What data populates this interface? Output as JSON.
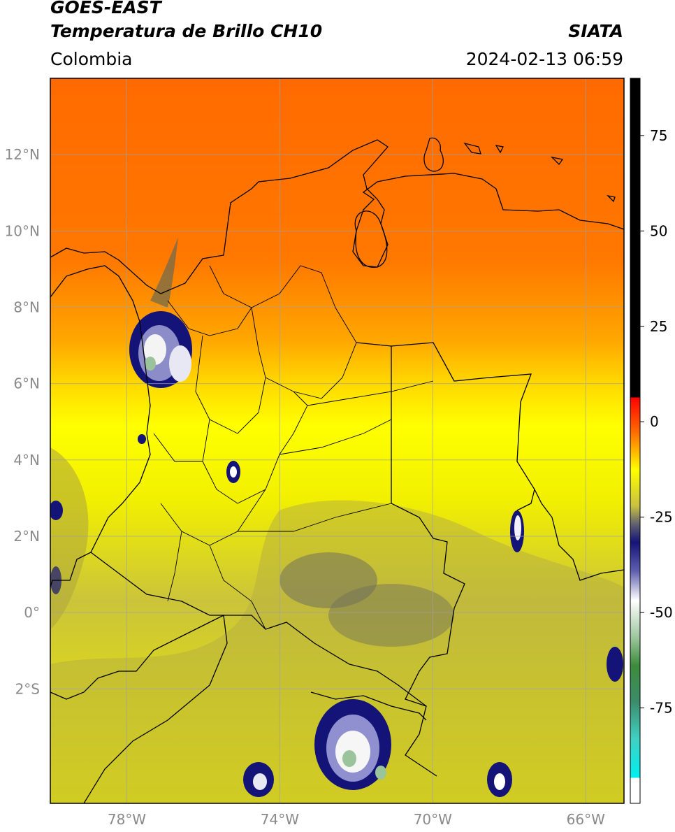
{
  "header": {
    "satellite": "GOES-EAST",
    "product": "Temperatura de Brillo CH10",
    "brand": "SIATA",
    "region": "Colombia",
    "timestamp": "2024-02-13 06:59"
  },
  "map": {
    "lon_range": [
      -80,
      -65
    ],
    "lat_range": [
      -5,
      14
    ],
    "x_ticks": [
      {
        "value": -78,
        "label": "78°W"
      },
      {
        "value": -74,
        "label": "74°W"
      },
      {
        "value": -70,
        "label": "70°W"
      },
      {
        "value": -66,
        "label": "66°W"
      }
    ],
    "y_ticks": [
      {
        "value": 12,
        "label": "12°N"
      },
      {
        "value": 10,
        "label": "10°N"
      },
      {
        "value": 8,
        "label": "8°N"
      },
      {
        "value": 6,
        "label": "6°N"
      },
      {
        "value": 4,
        "label": "4°N"
      },
      {
        "value": 2,
        "label": "2°N"
      },
      {
        "value": 0,
        "label": "0°"
      },
      {
        "value": -2,
        "label": "2°S"
      }
    ],
    "colors": {
      "orange": "#ff7000",
      "yellow": "#ffff00",
      "olive": "#b4ae3c",
      "navy": "#141478",
      "white": "#ffffff",
      "green": "#3c8c3c",
      "grid": "#a0a0a0"
    }
  },
  "colorbar": {
    "range": [
      -100,
      90
    ],
    "ticks": [
      {
        "value": 75,
        "label": "75"
      },
      {
        "value": 50,
        "label": "50"
      },
      {
        "value": 25,
        "label": "25"
      },
      {
        "value": 0,
        "label": "0"
      },
      {
        "value": -25,
        "label": "-25"
      },
      {
        "value": -50,
        "label": "-50"
      },
      {
        "value": -75,
        "label": "-75"
      }
    ]
  }
}
